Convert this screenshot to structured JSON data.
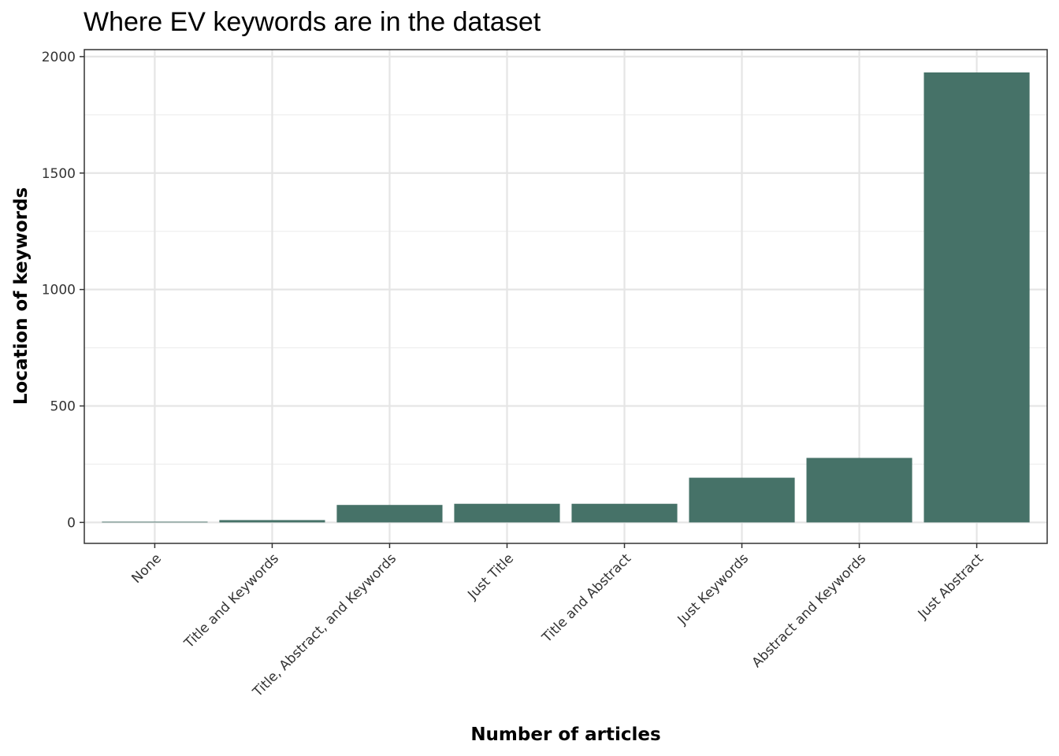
{
  "chart_data": {
    "type": "bar",
    "title": "Where EV keywords are in the dataset",
    "xlabel": "Number of articles",
    "ylabel": "Location of keywords",
    "categories": [
      "None",
      "Title and Keywords",
      "Title, Abstract, and Keywords",
      "Just Title",
      "Title and Abstract",
      "Just Keywords",
      "Abstract and Keywords",
      "Just Abstract"
    ],
    "values": [
      3,
      10,
      75,
      80,
      80,
      192,
      277,
      1932
    ],
    "ylim": [
      -90,
      2030
    ],
    "yticks": [
      0,
      500,
      1000,
      1500,
      2000
    ],
    "grid": true,
    "legend": "none",
    "colors": {
      "bar": "#467268"
    }
  }
}
